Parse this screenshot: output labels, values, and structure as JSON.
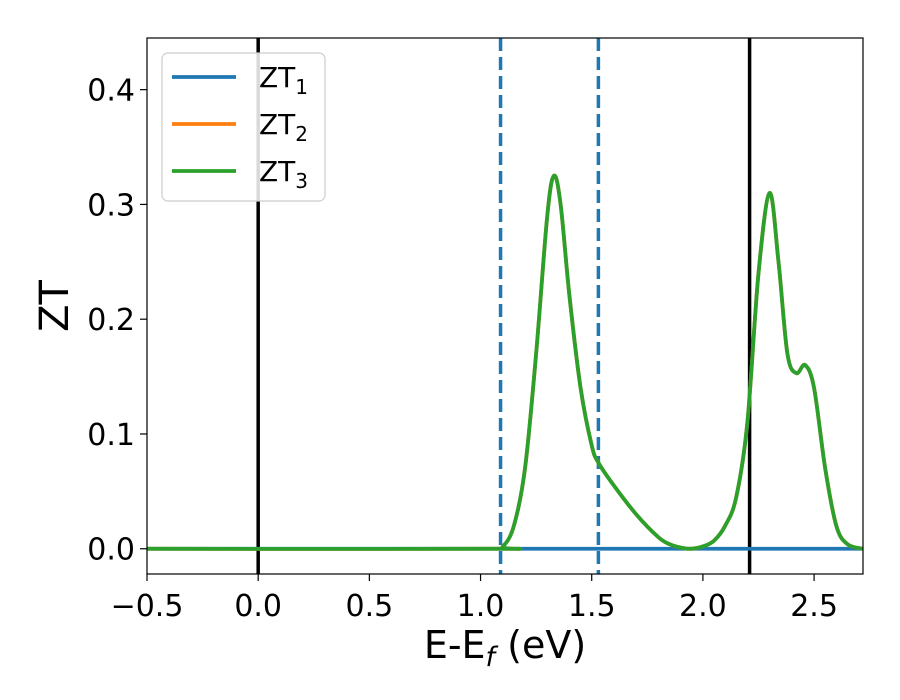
{
  "chart_data": {
    "type": "line",
    "xlabel_main": "E-E",
    "xlabel_sub": "f",
    "xlabel_unit": " (eV)",
    "ylabel": "ZT",
    "xlim": [
      -0.5,
      2.72
    ],
    "ylim": [
      -0.022,
      0.445
    ],
    "grid": false,
    "legend_position": "top-left",
    "x_ticks": [
      {
        "value": -0.5,
        "label": "−0.5"
      },
      {
        "value": 0.0,
        "label": "0.0"
      },
      {
        "value": 0.5,
        "label": "0.5"
      },
      {
        "value": 1.0,
        "label": "1.0"
      },
      {
        "value": 1.5,
        "label": "1.5"
      },
      {
        "value": 2.0,
        "label": "2.0"
      },
      {
        "value": 2.5,
        "label": "2.5"
      }
    ],
    "y_ticks": [
      {
        "value": 0.0,
        "label": "0.0"
      },
      {
        "value": 0.1,
        "label": "0.1"
      },
      {
        "value": 0.2,
        "label": "0.2"
      },
      {
        "value": 0.3,
        "label": "0.3"
      },
      {
        "value": 0.4,
        "label": "0.4"
      }
    ],
    "vertical_lines": [
      {
        "x": 0.0,
        "color": "#000000",
        "style": "solid"
      },
      {
        "x": 2.21,
        "color": "#000000",
        "style": "solid"
      },
      {
        "x": 1.09,
        "color": "#1f77b4",
        "style": "dashed"
      },
      {
        "x": 1.53,
        "color": "#1f77b4",
        "style": "dashed"
      }
    ],
    "series": [
      {
        "name_main": "ZT",
        "name_sub": "1",
        "color": "#1f77b4",
        "x": [
          -0.5,
          2.72
        ],
        "y": [
          0.0,
          0.0
        ]
      },
      {
        "name_main": "ZT",
        "name_sub": "2",
        "color": "#ff7f0e",
        "x": [
          -0.5,
          1.05,
          1.1,
          1.15,
          1.2,
          1.25,
          1.3,
          1.33,
          1.36,
          1.4,
          1.45,
          1.5,
          1.53,
          1.6,
          1.7,
          1.8,
          1.85,
          1.9,
          1.95,
          2.0,
          2.05,
          2.1,
          2.15,
          2.2,
          2.25,
          2.3,
          2.34,
          2.38,
          2.42,
          2.46,
          2.5,
          2.55,
          2.6,
          2.65,
          2.72
        ],
        "y": [
          0.0,
          0.0,
          0.002,
          0.02,
          0.07,
          0.17,
          0.29,
          0.325,
          0.3,
          0.22,
          0.14,
          0.09,
          0.075,
          0.055,
          0.03,
          0.01,
          0.004,
          0.001,
          0.0,
          0.002,
          0.007,
          0.02,
          0.045,
          0.11,
          0.24,
          0.31,
          0.25,
          0.17,
          0.153,
          0.16,
          0.14,
          0.07,
          0.02,
          0.004,
          0.0
        ]
      },
      {
        "name_main": "ZT",
        "name_sub": "3",
        "color": "#2ca02c",
        "x": [
          -0.5,
          1.05,
          1.1,
          1.15,
          1.2,
          1.25,
          1.3,
          1.33,
          1.36,
          1.4,
          1.45,
          1.5,
          1.53,
          1.6,
          1.7,
          1.8,
          1.85,
          1.9,
          1.95,
          2.0,
          2.05,
          2.1,
          2.15,
          2.2,
          2.25,
          2.3,
          2.34,
          2.38,
          2.42,
          2.46,
          2.5,
          2.55,
          2.6,
          2.65,
          2.72
        ],
        "y": [
          0.0,
          0.0,
          0.002,
          0.02,
          0.07,
          0.17,
          0.29,
          0.325,
          0.3,
          0.22,
          0.14,
          0.09,
          0.075,
          0.055,
          0.03,
          0.01,
          0.004,
          0.001,
          0.0,
          0.002,
          0.007,
          0.02,
          0.045,
          0.11,
          0.24,
          0.31,
          0.25,
          0.17,
          0.153,
          0.16,
          0.14,
          0.07,
          0.02,
          0.004,
          0.0
        ]
      }
    ]
  }
}
